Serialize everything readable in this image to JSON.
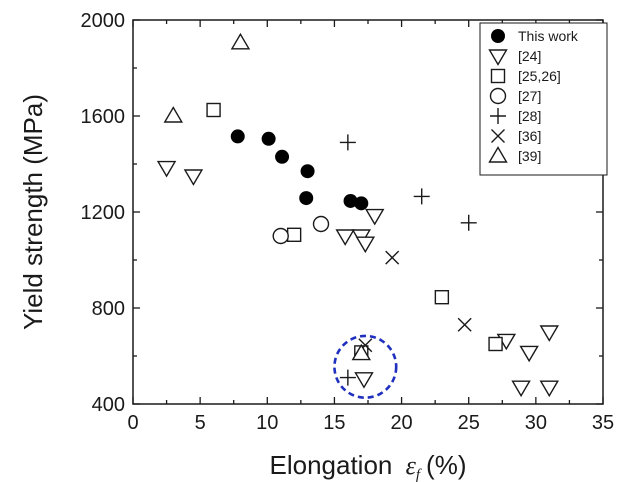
{
  "chart_data": {
    "type": "scatter",
    "xlabel": "Elongation",
    "xlabel_symbol": "ε",
    "xlabel_subscript": "f",
    "xlabel_unit": "(%)",
    "ylabel": "Yield strength (MPa)",
    "xlim": [
      0,
      35
    ],
    "ylim": [
      400,
      2000
    ],
    "xticks": [
      "0",
      "5",
      "10",
      "15",
      "20",
      "25",
      "30",
      "35"
    ],
    "yticks": [
      "400",
      "800",
      "1200",
      "1600",
      "2000"
    ],
    "x_minor_step": 2.5,
    "y_minor_step": 200,
    "grid": false,
    "legend_position": "top-right",
    "series": [
      {
        "name": "This work",
        "marker": "filled-circle",
        "points": [
          [
            7.8,
            1515
          ],
          [
            10.1,
            1505
          ],
          [
            11.1,
            1430
          ],
          [
            13.0,
            1370
          ],
          [
            12.9,
            1258
          ],
          [
            16.2,
            1246
          ],
          [
            17.0,
            1236
          ]
        ]
      },
      {
        "name": "[24]",
        "marker": "down-triangle",
        "points": [
          [
            2.5,
            1385
          ],
          [
            4.5,
            1350
          ],
          [
            15.8,
            1100
          ],
          [
            17.0,
            1100
          ],
          [
            17.3,
            1070
          ],
          [
            18.0,
            1185
          ],
          [
            27.8,
            665
          ],
          [
            29.5,
            615
          ],
          [
            31.0,
            700
          ],
          [
            28.9,
            470
          ],
          [
            31.0,
            470
          ],
          [
            17.2,
            505
          ]
        ]
      },
      {
        "name": "[25,26]",
        "marker": "square",
        "points": [
          [
            6.0,
            1625
          ],
          [
            12.0,
            1105
          ],
          [
            23.0,
            845
          ],
          [
            27.0,
            650
          ],
          [
            17.0,
            615
          ]
        ]
      },
      {
        "name": "[27]",
        "marker": "open-circle",
        "points": [
          [
            11.0,
            1100
          ],
          [
            14.0,
            1150
          ]
        ]
      },
      {
        "name": "[28]",
        "marker": "plus",
        "points": [
          [
            16.0,
            1490
          ],
          [
            21.5,
            1265
          ],
          [
            25.0,
            1155
          ],
          [
            16.0,
            510
          ]
        ]
      },
      {
        "name": "[36]",
        "marker": "x",
        "points": [
          [
            19.3,
            1010
          ],
          [
            24.7,
            730
          ],
          [
            17.3,
            645
          ]
        ]
      },
      {
        "name": "[39]",
        "marker": "up-triangle",
        "points": [
          [
            3.0,
            1600
          ],
          [
            8.0,
            1905
          ],
          [
            17.0,
            610
          ]
        ]
      }
    ],
    "highlight": {
      "shape": "dashed-circle",
      "color": "#1f2fbf",
      "center": [
        17.3,
        555
      ],
      "radius_x": 2.3
    }
  }
}
